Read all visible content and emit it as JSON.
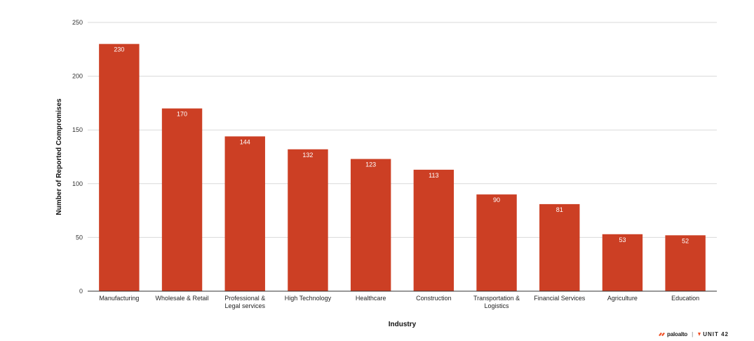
{
  "chart_data": {
    "type": "bar",
    "categories": [
      "Manufacturing",
      "Wholesale & Retail",
      "Professional & Legal services",
      "High Technology",
      "Healthcare",
      "Construction",
      "Transportation & Logistics",
      "Financial Services",
      "Agriculture",
      "Education"
    ],
    "category_lines": [
      [
        "Manufacturing"
      ],
      [
        "Wholesale & Retail"
      ],
      [
        "Professional &",
        "Legal services"
      ],
      [
        "High Technology"
      ],
      [
        "Healthcare"
      ],
      [
        "Construction"
      ],
      [
        "Transportation &",
        "Logistics"
      ],
      [
        "Financial Services"
      ],
      [
        "Agriculture"
      ],
      [
        "Education"
      ]
    ],
    "values": [
      230,
      170,
      144,
      132,
      123,
      113,
      90,
      81,
      53,
      52
    ],
    "xlabel": "Industry",
    "ylabel": "Number of Reported Compromises",
    "ylim": [
      0,
      250
    ],
    "yticks": [
      0,
      50,
      100,
      150,
      200,
      250
    ],
    "grid": true,
    "bar_color": "#cc3f24",
    "grid_color": "#d9d9d9",
    "data_labels": true
  },
  "branding": {
    "logo_text": "paloalto",
    "logo_subtext": "NETWORKS",
    "separator": "|",
    "unit_text": "UNIT 42"
  }
}
